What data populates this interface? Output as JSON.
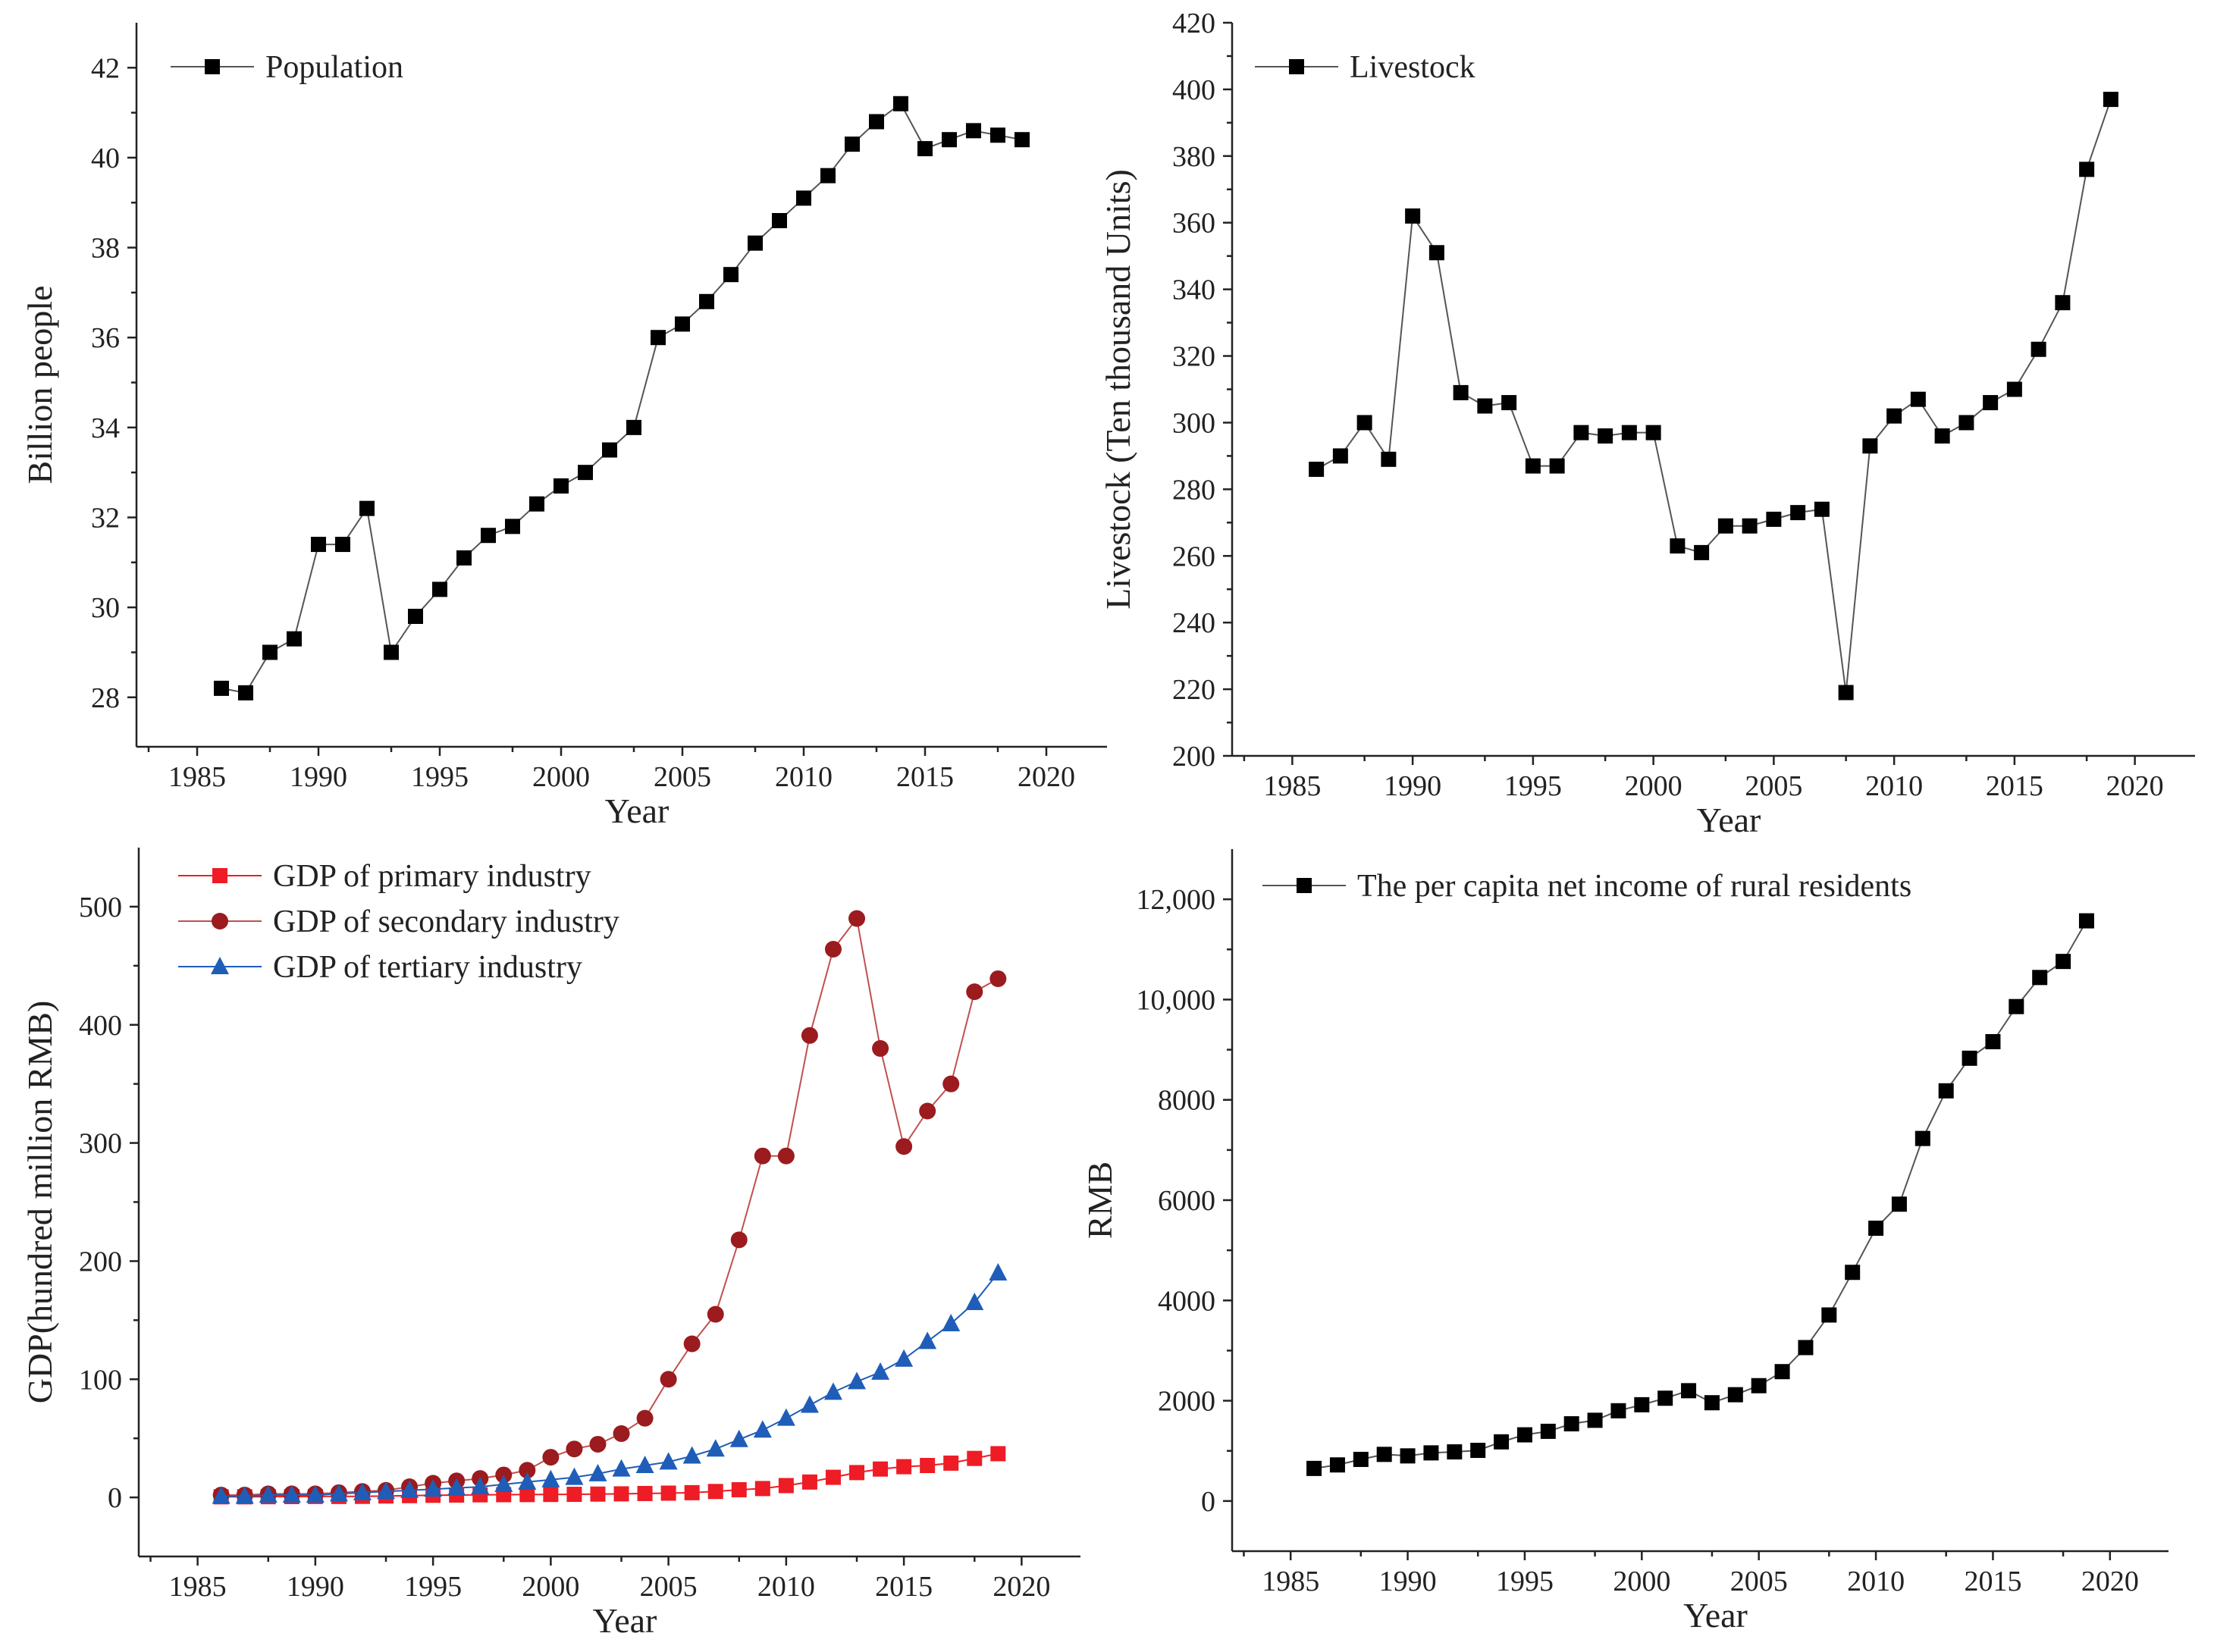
{
  "chart_data": [
    {
      "id": "population",
      "type": "line",
      "title": "",
      "xlabel": "Year",
      "ylabel": "Billion people",
      "xlim": [
        1982.5,
        2022.5
      ],
      "ylim": [
        26.9,
        43
      ],
      "xticks": [
        1985,
        1990,
        1995,
        2000,
        2005,
        2010,
        2015,
        2020
      ],
      "yticks": [
        28,
        30,
        32,
        34,
        36,
        38,
        40,
        42
      ],
      "xtick_labels": [
        "1985",
        "1990",
        "1995",
        "2000",
        "2005",
        "2010",
        "2015",
        "2020"
      ],
      "ytick_labels": [
        "28",
        "30",
        "32",
        "34",
        "36",
        "38",
        "40",
        "42"
      ],
      "legend_position": "top-left",
      "series": [
        {
          "name": "Population",
          "marker": "square",
          "color": "#000000",
          "line_color": "#555555",
          "x": [
            1986,
            1987,
            1988,
            1989,
            1990,
            1991,
            1992,
            1993,
            1994,
            1995,
            1996,
            1997,
            1998,
            1999,
            2000,
            2001,
            2002,
            2003,
            2004,
            2005,
            2006,
            2007,
            2008,
            2009,
            2010,
            2011,
            2012,
            2013,
            2014,
            2015,
            2016,
            2017,
            2018,
            2019
          ],
          "values": [
            28.2,
            28.1,
            29.0,
            29.3,
            31.4,
            31.4,
            32.2,
            29.0,
            29.8,
            30.4,
            31.1,
            31.6,
            31.8,
            32.3,
            32.7,
            33.0,
            33.5,
            34.0,
            36.0,
            36.3,
            36.8,
            37.4,
            38.1,
            38.6,
            39.1,
            39.6,
            40.3,
            40.8,
            41.2,
            40.2,
            40.4,
            40.6,
            40.5,
            40.4
          ]
        }
      ]
    },
    {
      "id": "livestock",
      "type": "line",
      "title": "",
      "xlabel": "Year",
      "ylabel": "Livestock (Ten thousand Units)",
      "xlim": [
        1982.5,
        2022.5
      ],
      "ylim": [
        200,
        420
      ],
      "xticks": [
        1985,
        1990,
        1995,
        2000,
        2005,
        2010,
        2015,
        2020
      ],
      "yticks": [
        200,
        220,
        240,
        260,
        280,
        300,
        320,
        340,
        360,
        380,
        400,
        420
      ],
      "xtick_labels": [
        "1985",
        "1990",
        "1995",
        "2000",
        "2005",
        "2010",
        "2015",
        "2020"
      ],
      "ytick_labels": [
        "200",
        "220",
        "240",
        "260",
        "280",
        "300",
        "320",
        "340",
        "360",
        "380",
        "400",
        "420"
      ],
      "legend_position": "top-left",
      "series": [
        {
          "name": "Livestock",
          "marker": "square",
          "color": "#000000",
          "line_color": "#555555",
          "x": [
            1986,
            1987,
            1988,
            1989,
            1990,
            1991,
            1992,
            1993,
            1994,
            1995,
            1996,
            1997,
            1998,
            1999,
            2000,
            2001,
            2002,
            2003,
            2004,
            2005,
            2006,
            2007,
            2008,
            2009,
            2010,
            2011,
            2012,
            2013,
            2014,
            2015,
            2016,
            2017,
            2018,
            2019
          ],
          "values": [
            286,
            290,
            300,
            289,
            362,
            351,
            309,
            305,
            306,
            287,
            287,
            297,
            296,
            297,
            297,
            263,
            261,
            269,
            269,
            271,
            273,
            274,
            219,
            293,
            302,
            307,
            296,
            300,
            306,
            310,
            322,
            336,
            376,
            397
          ]
        }
      ]
    },
    {
      "id": "gdp",
      "type": "line",
      "title": "",
      "xlabel": "Year",
      "ylabel": "GDP(hundred million RMB)",
      "xlim": [
        1982.5,
        2022.5
      ],
      "ylim": [
        -50,
        550
      ],
      "xticks": [
        1985,
        1990,
        1995,
        2000,
        2005,
        2010,
        2015,
        2020
      ],
      "yticks": [
        0,
        100,
        200,
        300,
        400,
        500
      ],
      "xtick_labels": [
        "1985",
        "1990",
        "1995",
        "2000",
        "2005",
        "2010",
        "2015",
        "2020"
      ],
      "ytick_labels": [
        "0",
        "100",
        "200",
        "300",
        "400",
        "500"
      ],
      "legend_position": "top-left",
      "series": [
        {
          "name": "GDP of primary industry",
          "marker": "square",
          "color": "#ee1c25",
          "line_color": "#ee1c25",
          "x": [
            1986,
            1987,
            1988,
            1989,
            1990,
            1991,
            1992,
            1993,
            1994,
            1995,
            1996,
            1997,
            1998,
            1999,
            2000,
            2001,
            2002,
            2003,
            2004,
            2005,
            2006,
            2007,
            2008,
            2009,
            2010,
            2011,
            2012,
            2013,
            2014,
            2015,
            2016,
            2017,
            2018,
            2019
          ],
          "values": [
            0.5,
            0.5,
            0.6,
            0.7,
            0.8,
            0.8,
            0.9,
            1.2,
            1.5,
            1.8,
            2.0,
            2.2,
            2.3,
            2.4,
            2.5,
            2.6,
            2.8,
            3.0,
            3.3,
            3.6,
            4.0,
            5.0,
            6.5,
            7.5,
            10,
            13,
            17,
            21,
            24,
            26,
            27,
            29,
            33,
            37
          ]
        },
        {
          "name": "GDP of secondary industry",
          "marker": "circle",
          "color": "#9b1b1e",
          "line_color": "#c05050",
          "x": [
            1986,
            1987,
            1988,
            1989,
            1990,
            1991,
            1992,
            1993,
            1994,
            1995,
            1996,
            1997,
            1998,
            1999,
            2000,
            2001,
            2002,
            2003,
            2004,
            2005,
            2006,
            2007,
            2008,
            2009,
            2010,
            2011,
            2012,
            2013,
            2014,
            2015,
            2016,
            2017,
            2018,
            2019
          ],
          "values": [
            2,
            2,
            3,
            3,
            3,
            4,
            5,
            6,
            9,
            12,
            14,
            16,
            19,
            23,
            34,
            41,
            45,
            54,
            67,
            100,
            130,
            155,
            218,
            289,
            289,
            391,
            464,
            490,
            380,
            297,
            327,
            350,
            428,
            439
          ]
        },
        {
          "name": "GDP of tertiary industry",
          "marker": "triangle",
          "color": "#1f5db8",
          "line_color": "#1f5db8",
          "x": [
            1986,
            1987,
            1988,
            1989,
            1990,
            1991,
            1992,
            1993,
            1994,
            1995,
            1996,
            1997,
            1998,
            1999,
            2000,
            2001,
            2002,
            2003,
            2004,
            2005,
            2006,
            2007,
            2008,
            2009,
            2010,
            2011,
            2012,
            2013,
            2014,
            2015,
            2016,
            2017,
            2018,
            2019
          ],
          "values": [
            1,
            1,
            2,
            2,
            2,
            3,
            4,
            5,
            6,
            7,
            8,
            9,
            11,
            13,
            15,
            17,
            20,
            24,
            27,
            30,
            35,
            41,
            49,
            57,
            67,
            78,
            89,
            98,
            106,
            117,
            132,
            147,
            165,
            190
          ]
        }
      ]
    },
    {
      "id": "income",
      "type": "line",
      "title": "",
      "xlabel": "Year",
      "ylabel": "RMB",
      "xlim": [
        1982.5,
        2022.5
      ],
      "ylim": [
        -1000,
        13000
      ],
      "xticks": [
        1985,
        1990,
        1995,
        2000,
        2005,
        2010,
        2015,
        2020
      ],
      "yticks": [
        0,
        2000,
        4000,
        6000,
        8000,
        10000,
        12000
      ],
      "xtick_labels": [
        "1985",
        "1990",
        "1995",
        "2000",
        "2005",
        "2010",
        "2015",
        "2020"
      ],
      "ytick_labels": [
        "0",
        "2000",
        "4000",
        "6000",
        "8000",
        "10,000",
        "12,000"
      ],
      "legend_position": "top-left",
      "series": [
        {
          "name": "The per capita net income of rural residents",
          "marker": "square",
          "color": "#000000",
          "line_color": "#555555",
          "x": [
            1986,
            1987,
            1988,
            1989,
            1990,
            1991,
            1992,
            1993,
            1994,
            1995,
            1996,
            1997,
            1998,
            1999,
            2000,
            2001,
            2002,
            2003,
            2004,
            2005,
            2006,
            2007,
            2008,
            2009,
            2010,
            2011,
            2012,
            2013,
            2014,
            2015,
            2016,
            2017,
            2018,
            2019
          ],
          "values": [
            650,
            720,
            830,
            930,
            900,
            960,
            980,
            1010,
            1180,
            1320,
            1390,
            1540,
            1610,
            1800,
            1920,
            2050,
            2200,
            1960,
            2120,
            2300,
            2580,
            3060,
            3710,
            4560,
            5440,
            5920,
            7230,
            8180,
            8830,
            9160,
            9860,
            10440,
            10760,
            11570
          ]
        }
      ]
    }
  ]
}
